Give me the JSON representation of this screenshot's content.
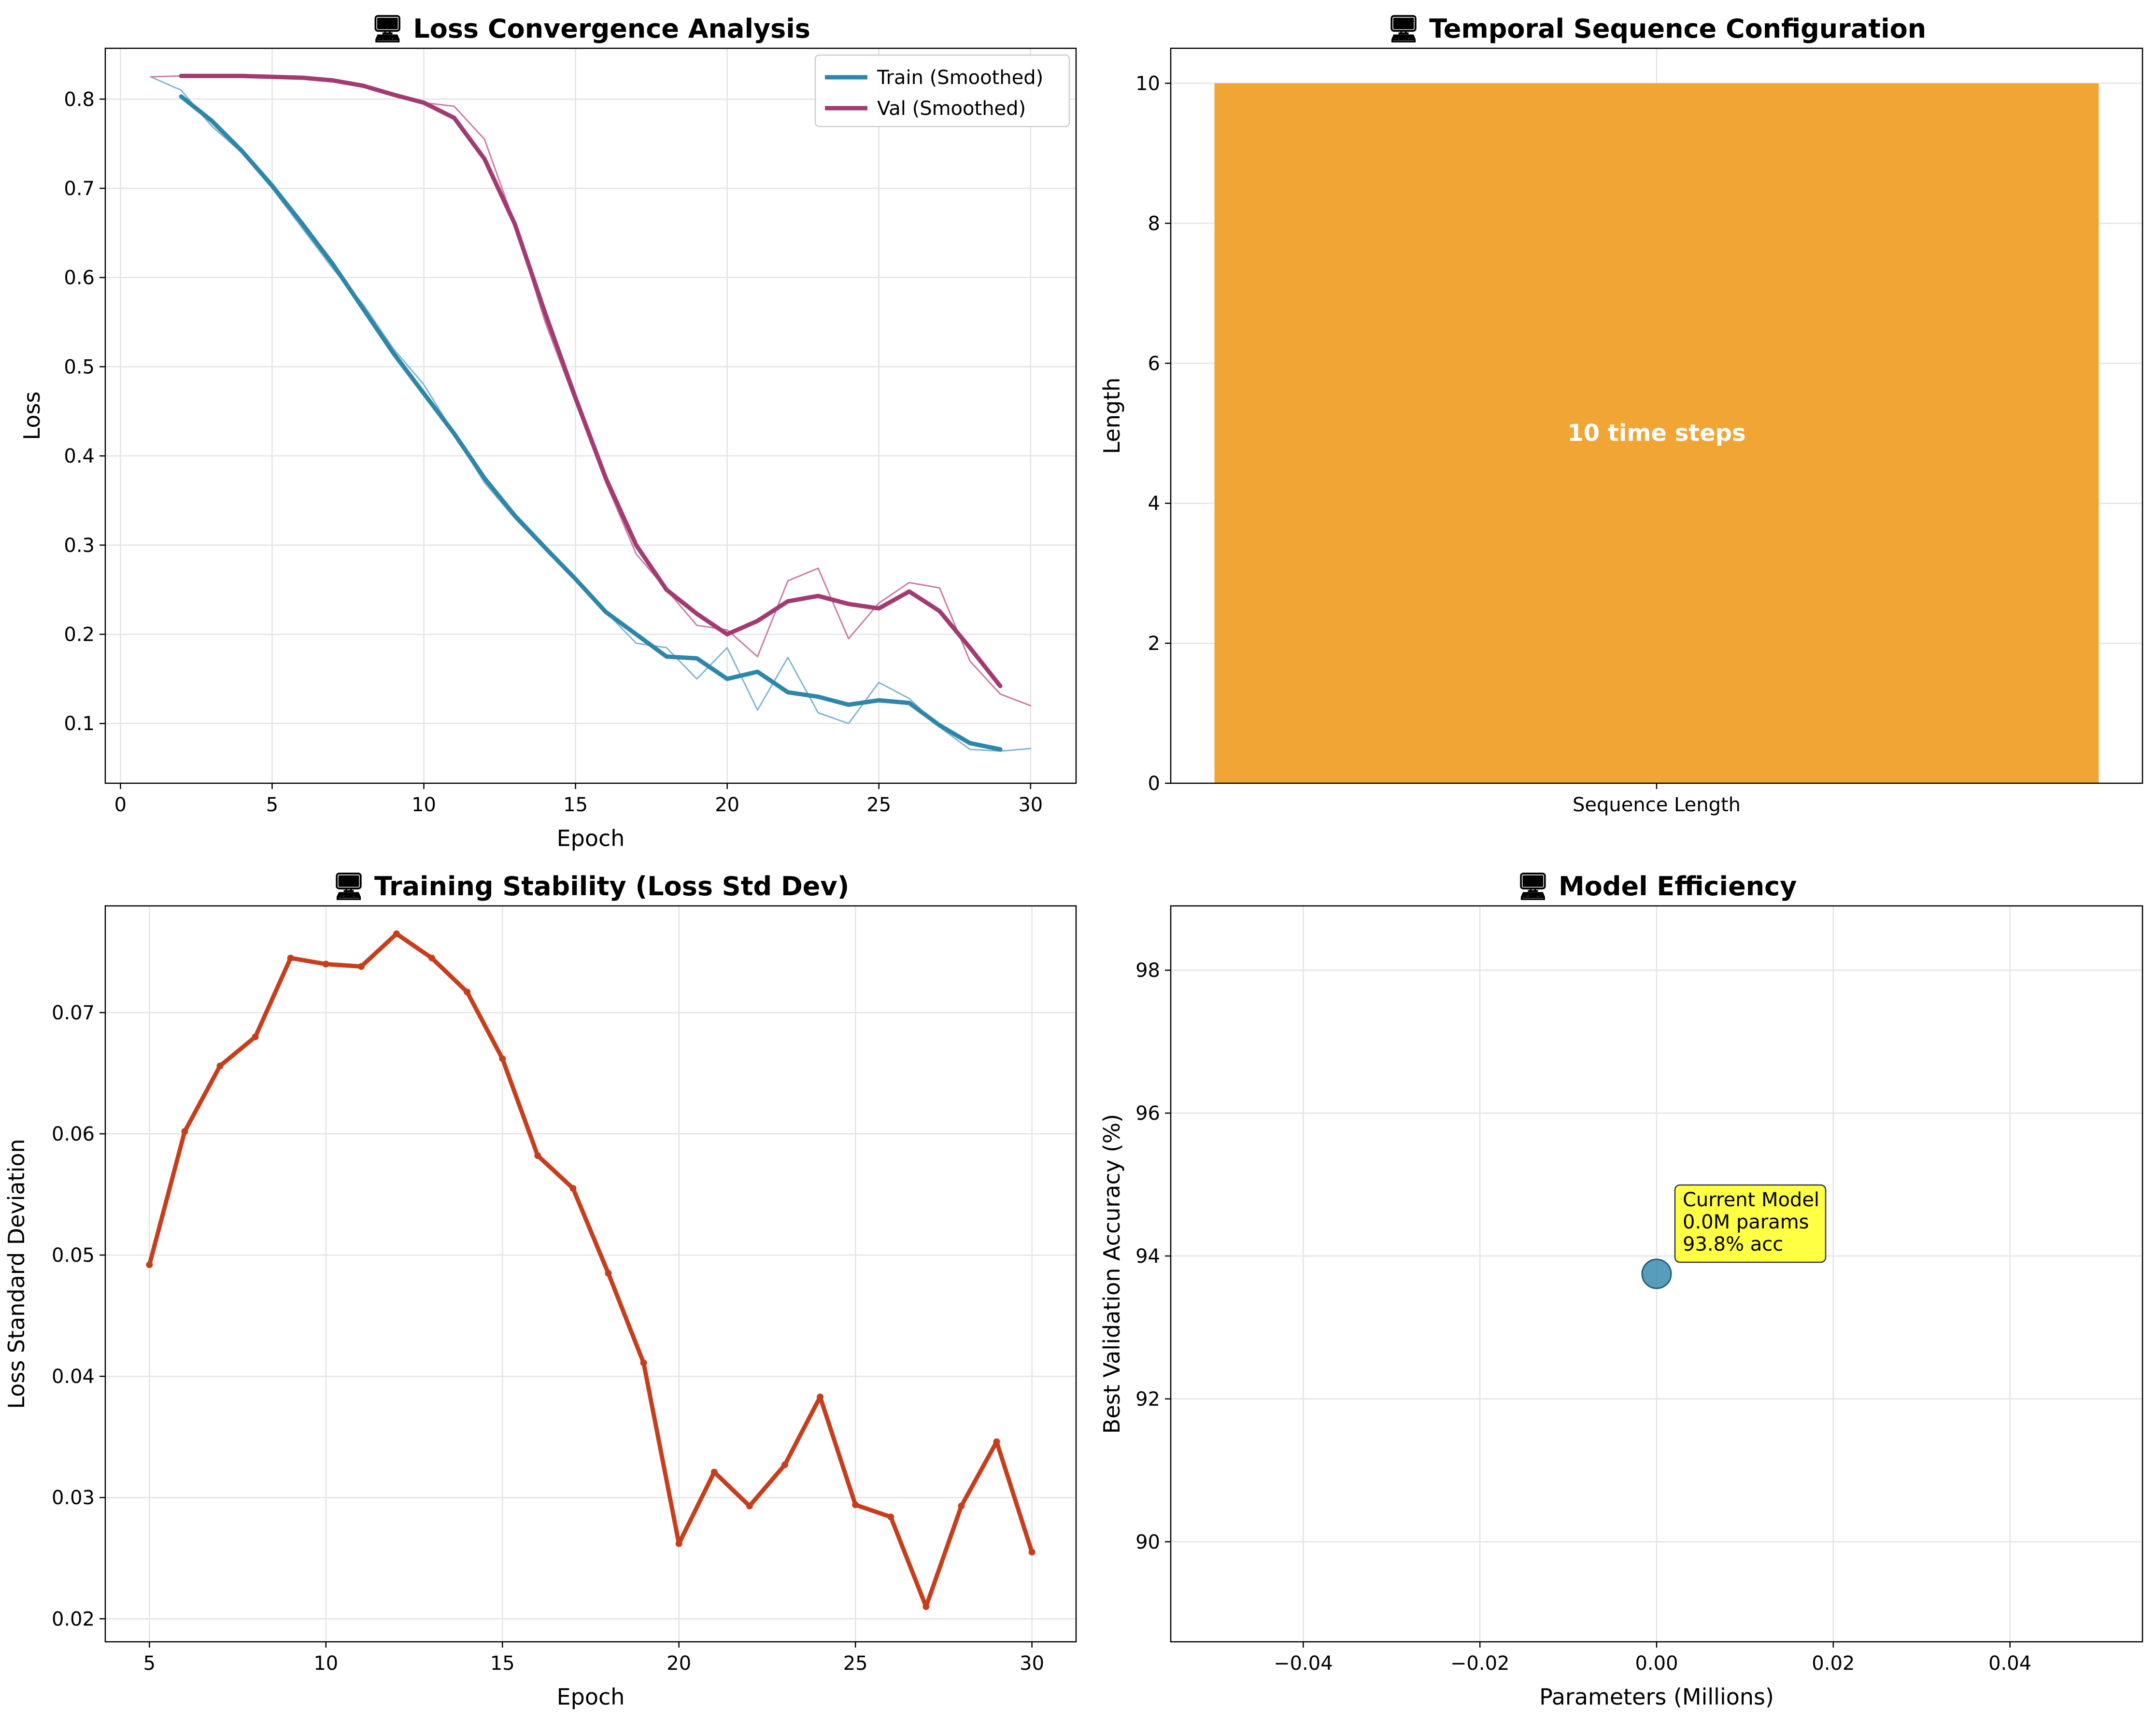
{
  "chart_data": [
    {
      "type": "line",
      "title": "🖥 Loss Convergence Analysis",
      "xlabel": "Epoch",
      "ylabel": "Loss",
      "xlim": [
        -0.5,
        31.5
      ],
      "ylim": [
        0.033,
        0.857
      ],
      "xticks": [
        0,
        5,
        10,
        15,
        20,
        25,
        30
      ],
      "yticks": [
        0.1,
        0.2,
        0.3,
        0.4,
        0.5,
        0.6,
        0.7,
        0.8
      ],
      "grid": true,
      "legend_position": "top-right",
      "raw_series": [
        {
          "color": "#7fb5d0",
          "x": [
            1,
            2,
            3,
            4,
            5,
            6,
            7,
            8,
            9,
            10,
            11,
            12,
            13,
            14,
            15,
            16,
            17,
            18,
            19,
            20,
            21,
            22,
            23,
            24,
            25,
            26,
            27,
            28,
            29,
            30
          ],
          "values": [
            0.825,
            0.81,
            0.77,
            0.74,
            0.7,
            0.655,
            0.61,
            0.57,
            0.52,
            0.48,
            0.425,
            0.37,
            0.33,
            0.295,
            0.26,
            0.225,
            0.19,
            0.185,
            0.15,
            0.185,
            0.115,
            0.174,
            0.112,
            0.1,
            0.146,
            0.128,
            0.096,
            0.071,
            0.069,
            0.072
          ]
        },
        {
          "color": "#cc7ca0",
          "x": [
            1,
            2,
            3,
            4,
            5,
            6,
            7,
            8,
            9,
            10,
            11,
            12,
            13,
            14,
            15,
            16,
            17,
            18,
            19,
            20,
            21,
            22,
            23,
            24,
            25,
            26,
            27,
            28,
            29,
            30
          ],
          "values": [
            0.825,
            0.826,
            0.826,
            0.825,
            0.825,
            0.823,
            0.821,
            0.816,
            0.806,
            0.796,
            0.792,
            0.755,
            0.66,
            0.55,
            0.46,
            0.37,
            0.29,
            0.25,
            0.21,
            0.205,
            0.175,
            0.26,
            0.274,
            0.195,
            0.235,
            0.258,
            0.252,
            0.17,
            0.133,
            0.12
          ]
        }
      ],
      "series": [
        {
          "name": "Train (Smoothed)",
          "color": "#2e86ab",
          "x": [
            2,
            3,
            4,
            5,
            6,
            7,
            8,
            9,
            10,
            11,
            12,
            13,
            14,
            15,
            16,
            17,
            18,
            19,
            20,
            21,
            22,
            23,
            24,
            25,
            26,
            27,
            28,
            29
          ],
          "values": [
            0.803,
            0.776,
            0.742,
            0.703,
            0.66,
            0.615,
            0.565,
            0.515,
            0.47,
            0.425,
            0.375,
            0.333,
            0.297,
            0.262,
            0.225,
            0.2,
            0.175,
            0.173,
            0.15,
            0.158,
            0.135,
            0.13,
            0.121,
            0.126,
            0.123,
            0.098,
            0.078,
            0.071
          ]
        },
        {
          "name": "Val (Smoothed)",
          "color": "#a23b72",
          "x": [
            2,
            3,
            4,
            5,
            6,
            7,
            8,
            9,
            10,
            11,
            12,
            13,
            14,
            15,
            16,
            17,
            18,
            19,
            20,
            21,
            22,
            23,
            24,
            25,
            26,
            27,
            28,
            29
          ],
          "values": [
            0.826,
            0.826,
            0.826,
            0.825,
            0.824,
            0.821,
            0.815,
            0.805,
            0.796,
            0.779,
            0.733,
            0.66,
            0.56,
            0.465,
            0.375,
            0.3,
            0.25,
            0.223,
            0.2,
            0.215,
            0.237,
            0.243,
            0.234,
            0.229,
            0.248,
            0.226,
            0.185,
            0.142
          ]
        }
      ]
    },
    {
      "type": "bar",
      "title": "🖥 Temporal Sequence Configuration",
      "xlabel": "",
      "ylabel": "Length",
      "categories": [
        "Sequence Length"
      ],
      "values": [
        10
      ],
      "ylim": [
        0,
        10.5
      ],
      "yticks": [
        0,
        2,
        4,
        6,
        8,
        10
      ],
      "color": "#f0a535",
      "annotation": "10 time steps",
      "grid": true
    },
    {
      "type": "line",
      "title": "🖥 Training Stability (Loss Std Dev)",
      "xlabel": "Epoch",
      "ylabel": "Loss Standard Deviation",
      "xlim": [
        3.75,
        31.25
      ],
      "ylim": [
        0.0181,
        0.0788
      ],
      "xticks": [
        5,
        10,
        15,
        20,
        25,
        30
      ],
      "yticks": [
        0.02,
        0.03,
        0.04,
        0.05,
        0.06,
        0.07
      ],
      "grid": true,
      "series": [
        {
          "color": "#c73e1d",
          "x": [
            5,
            6,
            7,
            8,
            9,
            10,
            11,
            12,
            13,
            14,
            15,
            16,
            17,
            18,
            19,
            20,
            21,
            22,
            23,
            24,
            25,
            26,
            27,
            28,
            29,
            30
          ],
          "values": [
            0.0492,
            0.0602,
            0.0656,
            0.068,
            0.0745,
            0.074,
            0.0738,
            0.0765,
            0.0745,
            0.0717,
            0.0662,
            0.0582,
            0.0555,
            0.0485,
            0.0411,
            0.0262,
            0.0321,
            0.0293,
            0.0327,
            0.0383,
            0.0294,
            0.0284,
            0.021,
            0.0293,
            0.0346,
            0.0255
          ]
        }
      ]
    },
    {
      "type": "scatter",
      "title": "🖥 Model Efficiency",
      "xlabel": "Parameters (Millions)",
      "ylabel": "Best Validation Accuracy (%)",
      "xlim": [
        -0.055,
        0.055
      ],
      "ylim": [
        88.6,
        98.9
      ],
      "xticks": [
        -0.04,
        -0.02,
        0.0,
        0.02,
        0.04
      ],
      "xtick_labels": [
        "−0.04",
        "−0.02",
        "0.00",
        "0.02",
        "0.04"
      ],
      "yticks": [
        90,
        92,
        94,
        96,
        98
      ],
      "grid": true,
      "points": [
        {
          "x": 0.0,
          "y": 93.75
        }
      ],
      "color": "#2e86ab",
      "annotation": {
        "lines": [
          "Current Model",
          "0.0M params",
          "93.8% acc"
        ],
        "x": 0.0,
        "y": 93.75,
        "box_color": "#ffff44"
      }
    }
  ]
}
